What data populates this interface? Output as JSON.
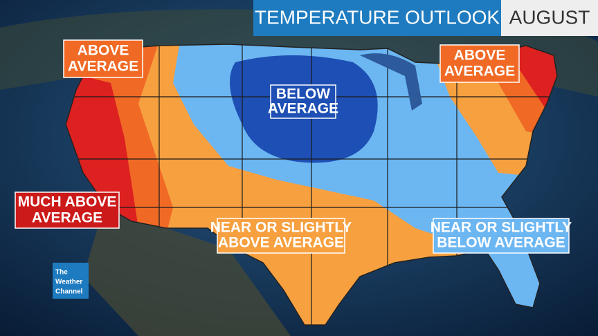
{
  "header": {
    "title": "TEMPERATURE OUTLOOK",
    "period": "AUGUST"
  },
  "labels": [
    {
      "lines": [
        "ABOVE",
        "AVERAGE"
      ]
    },
    {
      "lines": [
        "ABOVE",
        "AVERAGE"
      ]
    },
    {
      "lines": [
        "BELOW",
        "AVERAGE"
      ]
    },
    {
      "lines": [
        "MUCH ABOVE",
        "AVERAGE"
      ]
    },
    {
      "lines": [
        "NEAR OR SLIGHTLY",
        "ABOVE AVERAGE"
      ]
    },
    {
      "lines": [
        "NEAR OR SLIGHTLY",
        "BELOW AVERAGE"
      ]
    }
  ],
  "logo": {
    "lines": [
      "The",
      "Weather",
      "Channel"
    ]
  }
}
